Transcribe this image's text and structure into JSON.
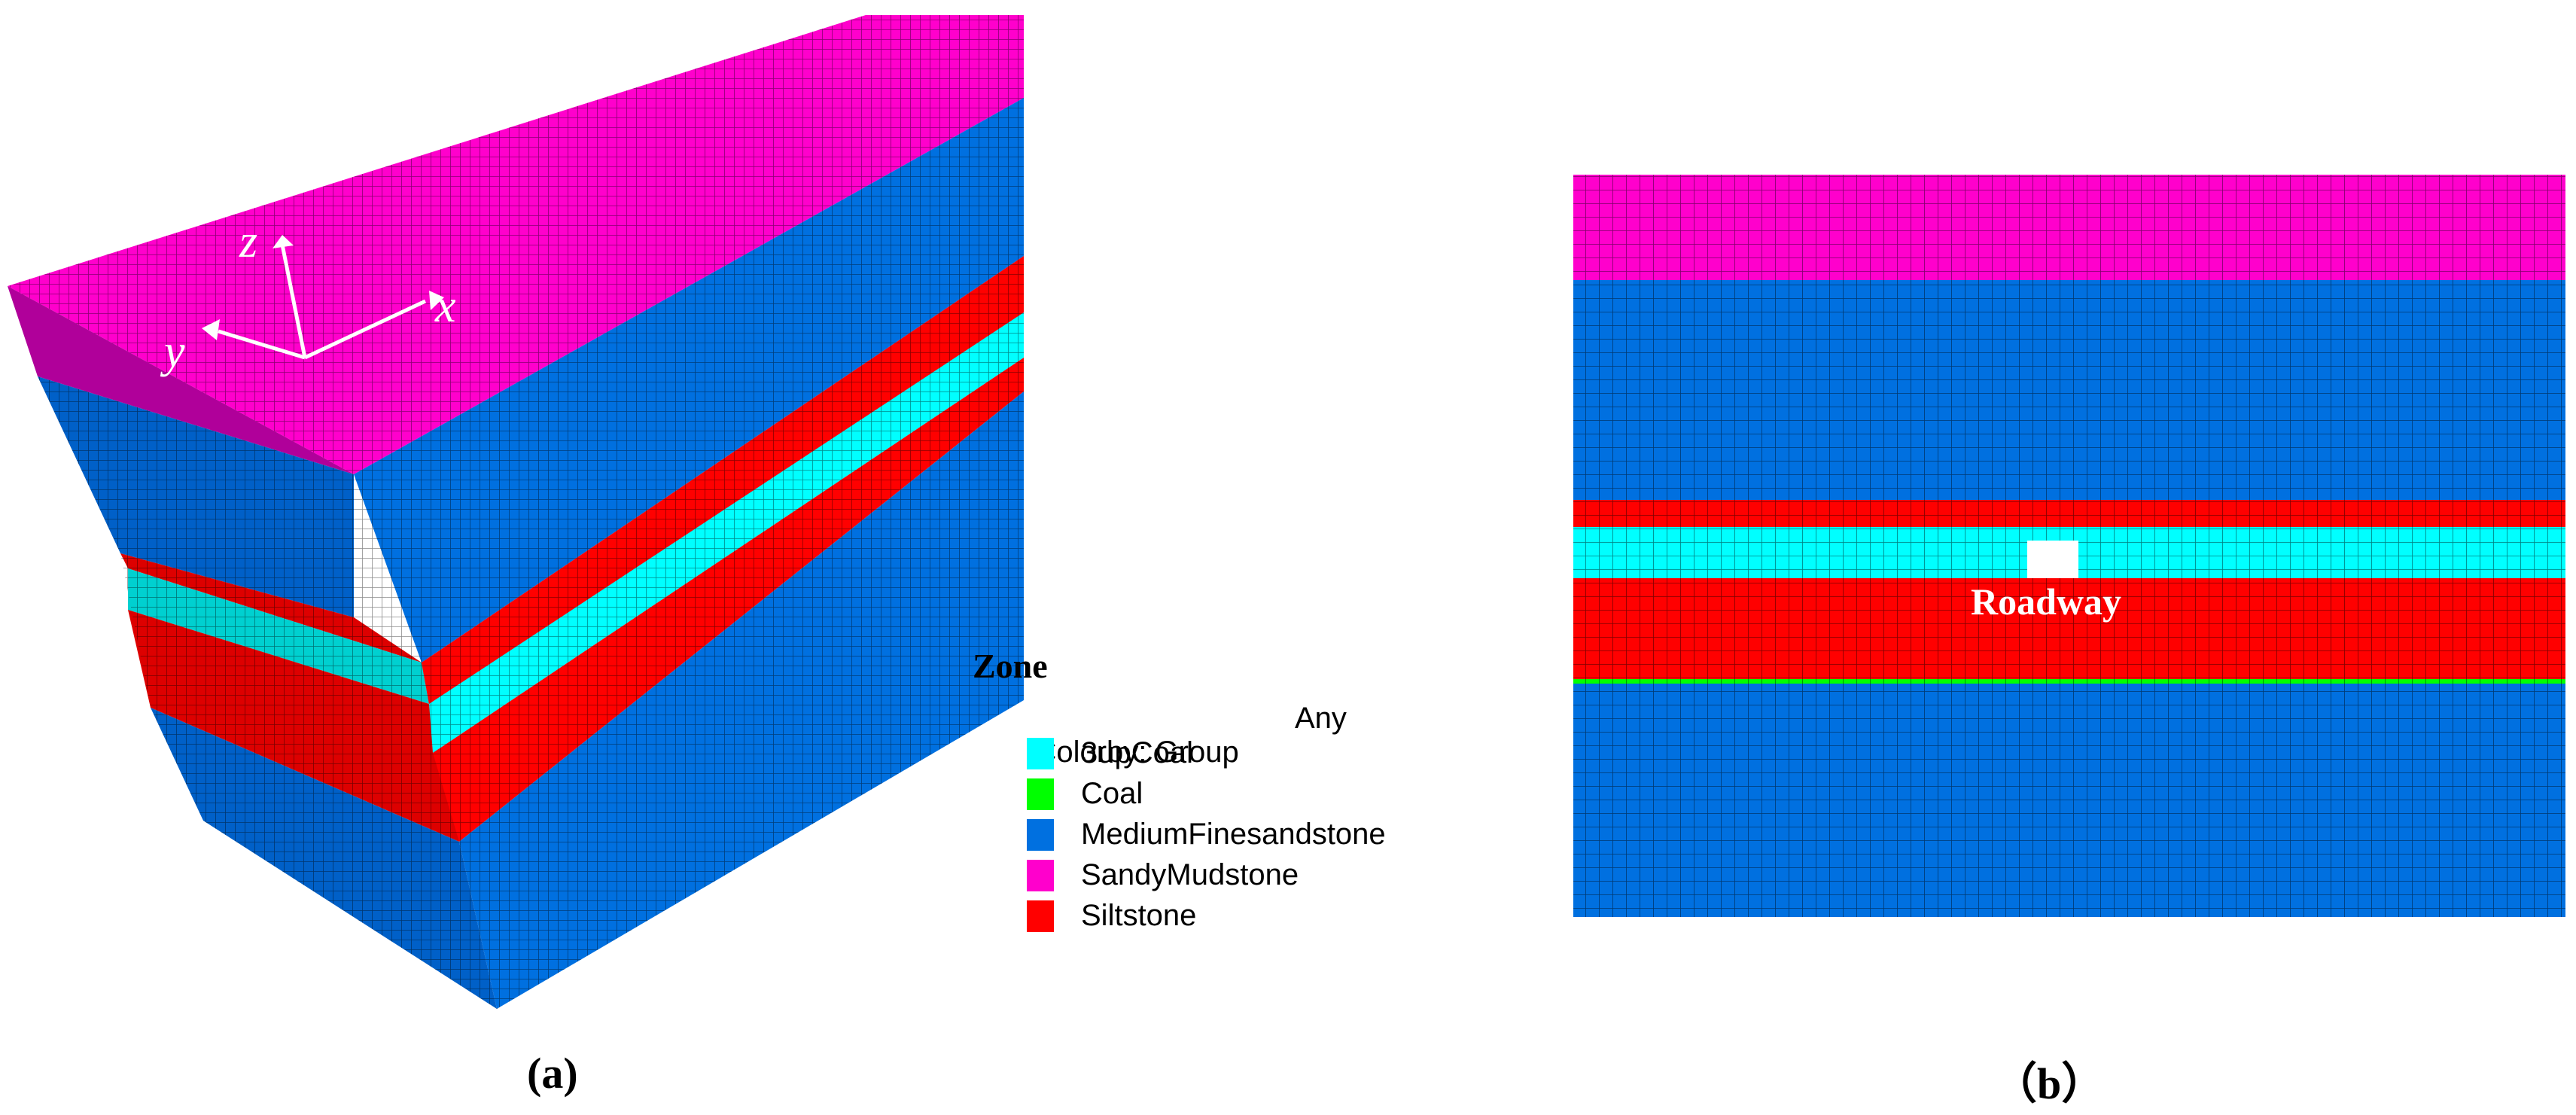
{
  "axes": {
    "z": "z",
    "x": "x",
    "y": "y"
  },
  "legend": {
    "title": "Zone",
    "colorby": "Colorby: Group",
    "any": "Any",
    "items": [
      {
        "label": "3upCoal",
        "color": "#00ffff"
      },
      {
        "label": "Coal",
        "color": "#00ff00"
      },
      {
        "label": "MediumFinesandstone",
        "color": "#0070e0"
      },
      {
        "label": "SandyMudstone",
        "color": "#ff00cc"
      },
      {
        "label": "Siltstone",
        "color": "#ff0000"
      }
    ]
  },
  "panels": {
    "a": "(a)",
    "b": "（b）"
  },
  "roadway_label": "Roadway",
  "colors": {
    "sandy_mudstone": "#ff00cc",
    "medium_fine_sandstone": "#0070e0",
    "siltstone": "#ff0000",
    "coal_3up": "#00ffff",
    "coal": "#00ff00",
    "mesh_line": "#001a55"
  }
}
